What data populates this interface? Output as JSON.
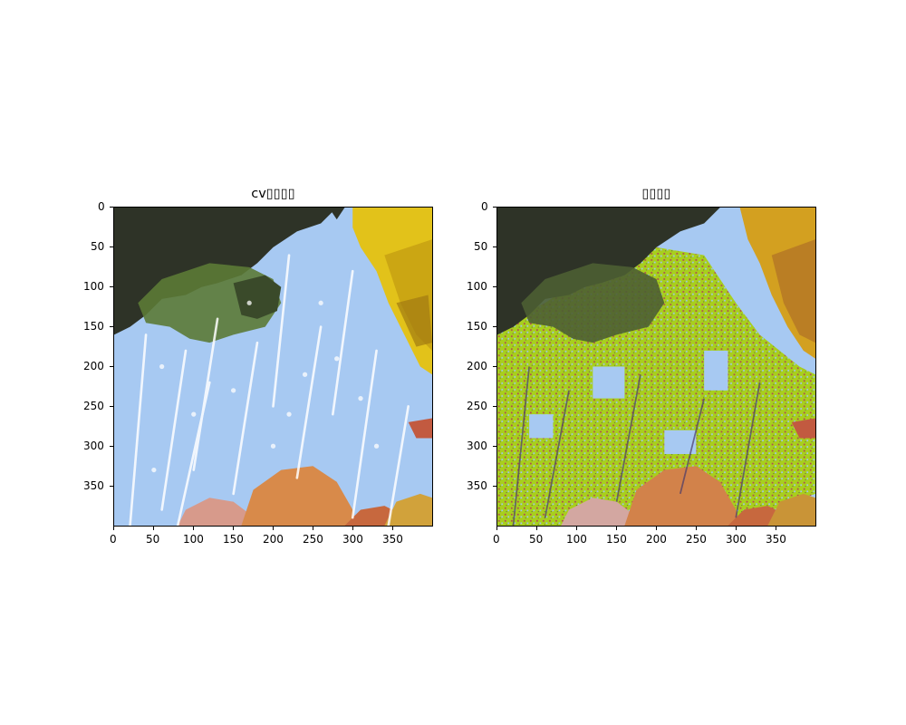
{
  "panels": [
    {
      "title": "cv▯▯▯▯",
      "variant": "original",
      "x_ticks": [
        "0",
        "50",
        "100",
        "150",
        "200",
        "250",
        "300",
        "350"
      ],
      "y_ticks": [
        "0",
        "50",
        "100",
        "150",
        "200",
        "250",
        "300",
        "350"
      ]
    },
    {
      "title": "▯▯▯▯",
      "variant": "quantized",
      "x_ticks": [
        "0",
        "50",
        "100",
        "150",
        "200",
        "250",
        "300",
        "350"
      ],
      "y_ticks": [
        "0",
        "50",
        "100",
        "150",
        "200",
        "250",
        "300",
        "350"
      ]
    }
  ],
  "colors": {
    "sky": "#a7c9f2",
    "foliage_dark": "#2e3327",
    "foliage_green": "#6f8a3a",
    "foliage_yellow": "#e2c21a",
    "foliage_orange": "#d88a4a",
    "quantized_lime": "#a8cf12",
    "blossom_white": "#ffffff"
  }
}
